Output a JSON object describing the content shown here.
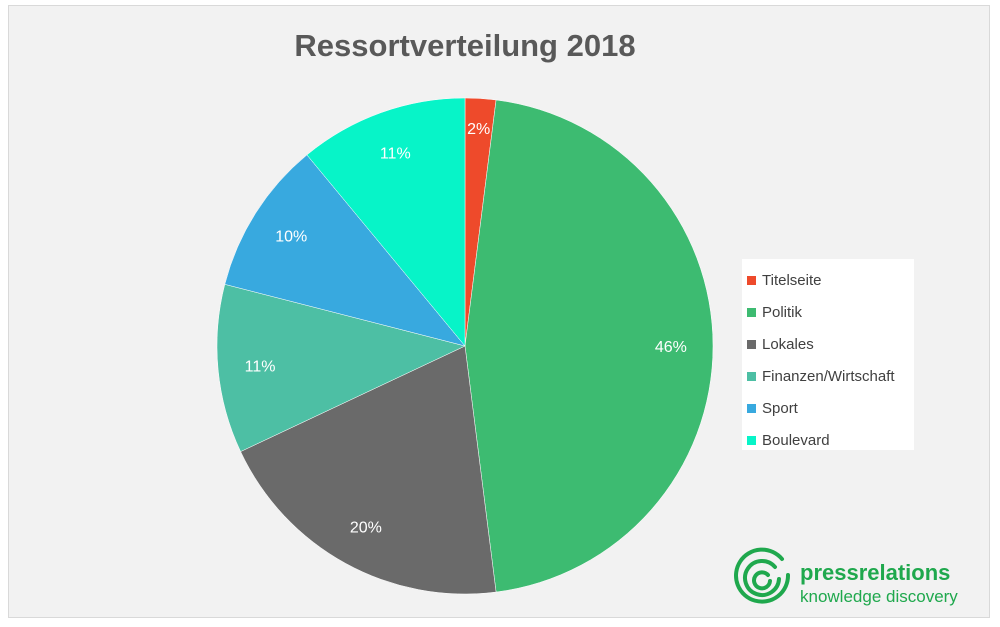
{
  "chart_data": {
    "type": "pie",
    "title": "Ressortverteilung 2018",
    "legend_position": "right",
    "categories": [
      "Titelseite",
      "Politik",
      "Lokales",
      "Finanzen/Wirtschaft",
      "Sport",
      "Boulevard"
    ],
    "values": [
      2,
      46,
      20,
      11,
      10,
      11
    ],
    "labels": [
      "2%",
      "46%",
      "20%",
      "11%",
      "10%",
      "11%"
    ],
    "colors": [
      "#ee4a2b",
      "#3dbb71",
      "#6a6a6a",
      "#4dbfa4",
      "#38a9df",
      "#07f4c8"
    ]
  },
  "logo": {
    "brand": "pressrelations",
    "tagline": "knowledge discovery",
    "color": "#1fa84d"
  }
}
